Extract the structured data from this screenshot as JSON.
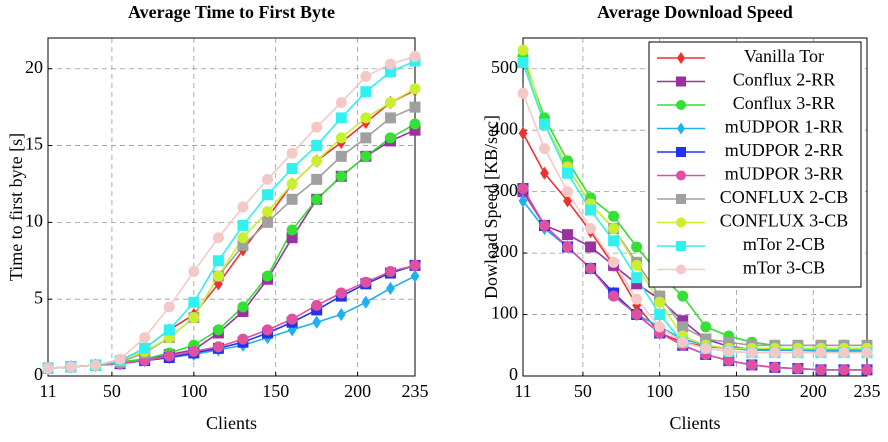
{
  "chart_data": [
    {
      "type": "line",
      "title": "Average Time to First Byte",
      "xlabel": "Clients",
      "ylabel": "Time to first byte [s]",
      "x": [
        11,
        25,
        40,
        55,
        70,
        85,
        100,
        115,
        130,
        145,
        160,
        175,
        190,
        205,
        220,
        235
      ],
      "xlim": [
        11,
        235
      ],
      "xticks": [
        11,
        50,
        100,
        150,
        200,
        235
      ],
      "ylim": [
        0,
        22
      ],
      "yticks": [
        0,
        5,
        10,
        15,
        20
      ],
      "grid": true,
      "series": [
        {
          "name": "Vanilla Tor",
          "color": "#f03030",
          "marker": "diamond",
          "values": [
            0.5,
            0.6,
            0.7,
            1.0,
            1.8,
            3.0,
            4.0,
            6.0,
            8.2,
            10.3,
            12.5,
            14.0,
            15.2,
            16.5,
            17.8,
            18.6
          ]
        },
        {
          "name": "Conflux 2-RR",
          "color": "#9b30a0",
          "marker": "square",
          "values": [
            0.5,
            0.6,
            0.7,
            0.9,
            1.1,
            1.4,
            1.7,
            2.8,
            4.2,
            6.3,
            9.0,
            11.5,
            13.0,
            14.3,
            15.3,
            16.0
          ]
        },
        {
          "name": "Conflux 3-RR",
          "color": "#33e033",
          "marker": "circle",
          "values": [
            0.5,
            0.6,
            0.7,
            0.9,
            1.1,
            1.5,
            2.0,
            3.0,
            4.5,
            6.5,
            9.5,
            11.5,
            13.0,
            14.3,
            15.5,
            16.4
          ]
        },
        {
          "name": "mUDPOR 1-RR",
          "color": "#1fb0f0",
          "marker": "diamond",
          "values": [
            0.5,
            0.6,
            0.7,
            0.8,
            1.0,
            1.2,
            1.4,
            1.7,
            2.0,
            2.5,
            3.0,
            3.5,
            4.0,
            4.8,
            5.7,
            6.5
          ]
        },
        {
          "name": "mUDPOR 2-RR",
          "color": "#2233f0",
          "marker": "square",
          "values": [
            0.5,
            0.6,
            0.7,
            0.8,
            1.0,
            1.2,
            1.5,
            1.8,
            2.2,
            2.8,
            3.5,
            4.3,
            5.2,
            6.0,
            6.7,
            7.2
          ]
        },
        {
          "name": "mUDPOR 3-RR",
          "color": "#e050a0",
          "marker": "circle",
          "values": [
            0.5,
            0.6,
            0.7,
            0.8,
            1.0,
            1.3,
            1.6,
            1.9,
            2.4,
            3.0,
            3.7,
            4.6,
            5.4,
            6.1,
            6.8,
            7.2
          ]
        },
        {
          "name": "CONFLUX 2-CB",
          "color": "#a0a0a0",
          "marker": "square",
          "values": [
            0.5,
            0.6,
            0.7,
            0.9,
            1.5,
            2.5,
            3.8,
            6.5,
            8.5,
            10.0,
            11.5,
            12.8,
            14.3,
            15.5,
            16.8,
            17.5
          ]
        },
        {
          "name": "CONFLUX 3-CB",
          "color": "#c8f030",
          "marker": "circle",
          "values": [
            0.5,
            0.6,
            0.7,
            1.0,
            1.6,
            2.5,
            3.8,
            6.5,
            9.0,
            10.7,
            12.5,
            14.0,
            15.5,
            16.8,
            17.8,
            18.7
          ]
        },
        {
          "name": "mTor 2-CB",
          "color": "#30f0f0",
          "marker": "square",
          "values": [
            0.5,
            0.6,
            0.7,
            1.0,
            1.8,
            3.0,
            4.8,
            7.5,
            9.8,
            11.8,
            13.5,
            15.0,
            16.8,
            18.5,
            19.8,
            20.5
          ]
        },
        {
          "name": "mTor 3-CB",
          "color": "#f5c8c8",
          "marker": "circle",
          "values": [
            0.5,
            0.6,
            0.7,
            1.1,
            2.5,
            4.5,
            6.8,
            9.0,
            11.0,
            12.8,
            14.5,
            16.2,
            17.8,
            19.5,
            20.3,
            20.8
          ]
        }
      ]
    },
    {
      "type": "line",
      "title": "Average Download Speed",
      "xlabel": "Clients",
      "ylabel": "Dowload Speed [KB/sec]",
      "x": [
        11,
        25,
        40,
        55,
        70,
        85,
        100,
        115,
        130,
        145,
        160,
        175,
        190,
        205,
        220,
        235
      ],
      "xlim": [
        11,
        235
      ],
      "xticks": [
        11,
        50,
        100,
        150,
        200,
        235
      ],
      "ylim": [
        0,
        550
      ],
      "yticks": [
        0,
        100,
        200,
        300,
        400,
        500
      ],
      "grid": true,
      "legend": "upper right",
      "series": [
        {
          "name": "Vanilla Tor",
          "color": "#f03030",
          "marker": "diamond",
          "values": [
            395,
            330,
            285,
            235,
            180,
            115,
            70,
            55,
            48,
            45,
            43,
            42,
            42,
            41,
            41,
            41
          ]
        },
        {
          "name": "Conflux 2-RR",
          "color": "#9b30a0",
          "marker": "square",
          "values": [
            300,
            245,
            230,
            210,
            180,
            150,
            125,
            90,
            60,
            48,
            44,
            42,
            42,
            42,
            42,
            42
          ]
        },
        {
          "name": "Conflux 3-RR",
          "color": "#33e033",
          "marker": "circle",
          "values": [
            520,
            420,
            350,
            290,
            260,
            210,
            165,
            130,
            80,
            65,
            55,
            50,
            50,
            50,
            50,
            50
          ]
        },
        {
          "name": "mUDPOR 1-RR",
          "color": "#1fb0f0",
          "marker": "diamond",
          "values": [
            285,
            240,
            210,
            175,
            135,
            100,
            80,
            60,
            50,
            45,
            42,
            42,
            42,
            42,
            42,
            42
          ]
        },
        {
          "name": "mUDPOR 2-RR",
          "color": "#2233f0",
          "marker": "square",
          "values": [
            305,
            245,
            210,
            175,
            135,
            100,
            70,
            50,
            35,
            25,
            18,
            14,
            12,
            10,
            10,
            10
          ]
        },
        {
          "name": "mUDPOR 3-RR",
          "color": "#e050a0",
          "marker": "circle",
          "values": [
            305,
            245,
            210,
            175,
            130,
            100,
            70,
            50,
            35,
            25,
            18,
            14,
            12,
            10,
            10,
            10
          ]
        },
        {
          "name": "CONFLUX 2-CB",
          "color": "#a0a0a0",
          "marker": "square",
          "values": [
            510,
            410,
            340,
            280,
            240,
            185,
            130,
            80,
            60,
            55,
            50,
            50,
            50,
            50,
            50,
            50
          ]
        },
        {
          "name": "CONFLUX 3-CB",
          "color": "#c8f030",
          "marker": "circle",
          "values": [
            530,
            410,
            340,
            280,
            240,
            180,
            120,
            65,
            50,
            45,
            45,
            45,
            45,
            45,
            45,
            45
          ]
        },
        {
          "name": "mTor 2-CB",
          "color": "#30f0f0",
          "marker": "square",
          "values": [
            510,
            410,
            330,
            270,
            220,
            160,
            100,
            55,
            45,
            40,
            38,
            38,
            38,
            38,
            38,
            38
          ]
        },
        {
          "name": "mTor 3-CB",
          "color": "#f5c8c8",
          "marker": "circle",
          "values": [
            460,
            370,
            300,
            240,
            185,
            125,
            80,
            55,
            45,
            40,
            38,
            38,
            38,
            38,
            38,
            38
          ]
        }
      ]
    }
  ]
}
